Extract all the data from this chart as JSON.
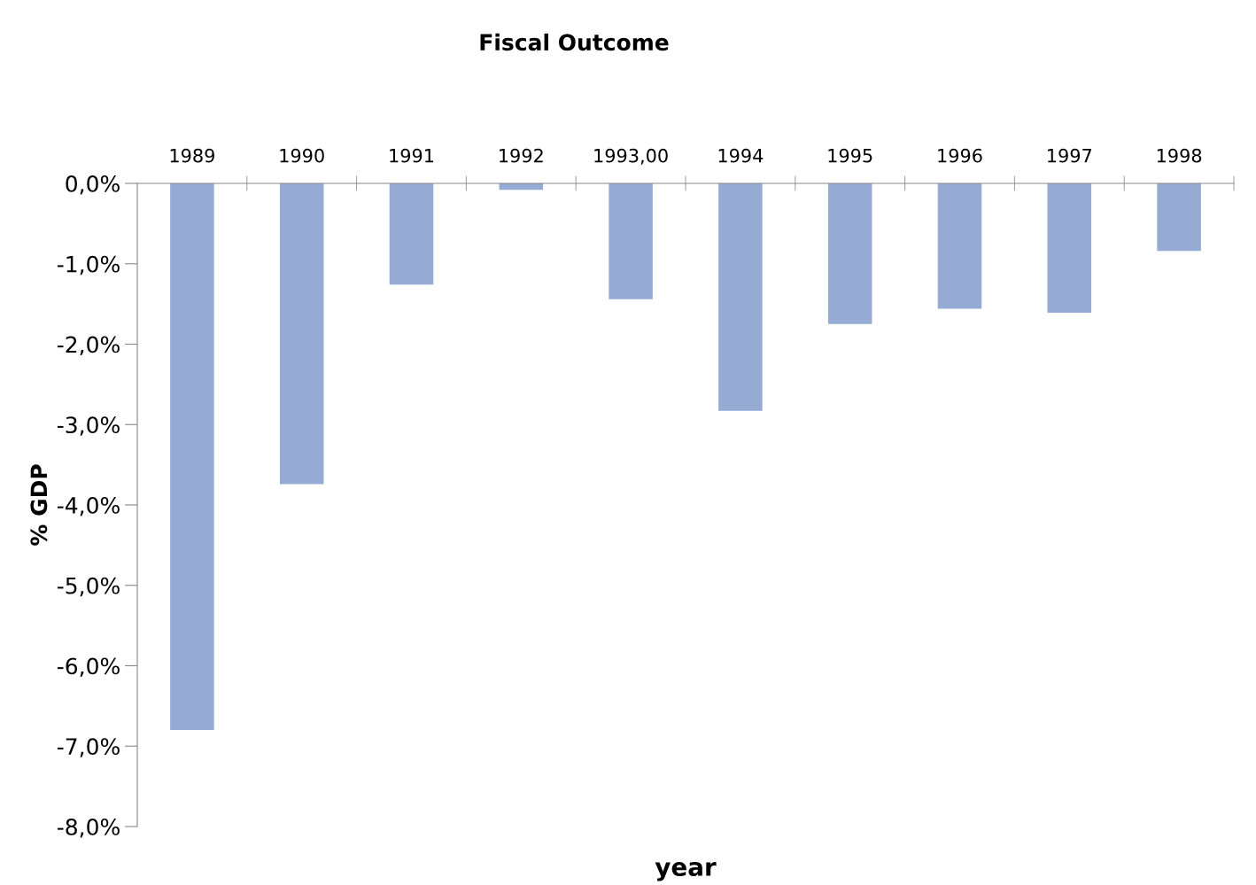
{
  "chart_data": {
    "type": "bar",
    "title": "Fiscal Outcome",
    "xlabel": "year",
    "ylabel": "% GDP",
    "categories": [
      "1989",
      "1990",
      "1991",
      "1992",
      "1993,00",
      "1994",
      "1995",
      "1996",
      "1997",
      "1998"
    ],
    "values": [
      -6.8,
      -3.74,
      -1.26,
      -0.08,
      -1.44,
      -2.83,
      -1.75,
      -1.56,
      -1.61,
      -0.84
    ],
    "color": "#95abd3",
    "ylim": [
      -8,
      0
    ],
    "yticks": [
      {
        "value": 0,
        "label": "0,0%"
      },
      {
        "value": -1,
        "label": "-1,0%"
      },
      {
        "value": -2,
        "label": "-2,0%"
      },
      {
        "value": -3,
        "label": "-3,0%"
      },
      {
        "value": -4,
        "label": "-4,0%"
      },
      {
        "value": -5,
        "label": "-5,0%"
      },
      {
        "value": -6,
        "label": "-6,0%"
      },
      {
        "value": -7,
        "label": "-7,0%"
      },
      {
        "value": -8,
        "label": "-8,0%"
      }
    ],
    "grid": false,
    "legend": false
  }
}
